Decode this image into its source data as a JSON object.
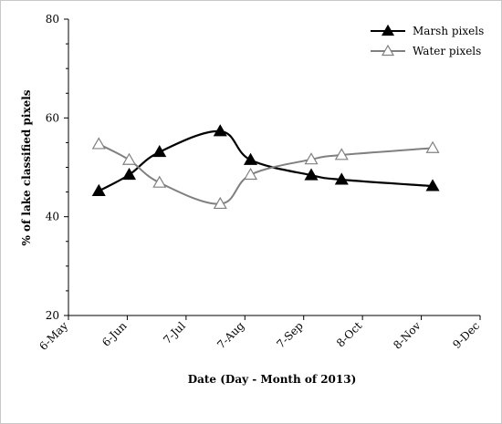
{
  "chart_data": {
    "type": "line",
    "title": "",
    "xlabel": "Date (Day - Month of 2013)",
    "ylabel": "% of lake classified pixels",
    "x_ticks": [
      "6-May",
      "6-Jun",
      "7-Jul",
      "7-Aug",
      "7-Sep",
      "8-Oct",
      "8-Nov",
      "9-Dec"
    ],
    "xlim": [
      "2013-05-06",
      "2013-12-09"
    ],
    "ylim": [
      20,
      80
    ],
    "y_ticks": [
      20,
      40,
      60,
      80
    ],
    "legend_position": "top-right",
    "grid": false,
    "series": [
      {
        "name": "Marsh pixels",
        "color": "#000000",
        "marker": "filled-triangle",
        "x": [
          "2013-05-22",
          "2013-06-07",
          "2013-06-23",
          "2013-07-25",
          "2013-08-10",
          "2013-09-11",
          "2013-09-27",
          "2013-11-14"
        ],
        "y": [
          45.2,
          48.5,
          53.1,
          57.3,
          51.5,
          48.4,
          47.5,
          46.2
        ]
      },
      {
        "name": "Water pixels",
        "color": "#808080",
        "marker": "open-triangle",
        "x": [
          "2013-05-22",
          "2013-06-07",
          "2013-06-23",
          "2013-07-25",
          "2013-08-10",
          "2013-09-11",
          "2013-09-27",
          "2013-11-14"
        ],
        "y": [
          54.7,
          51.5,
          46.9,
          42.6,
          48.5,
          51.6,
          52.5,
          53.9
        ]
      }
    ]
  }
}
